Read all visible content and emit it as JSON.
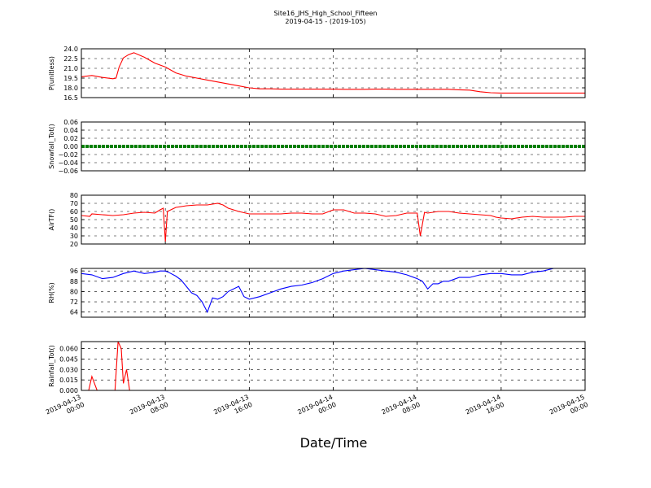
{
  "title": "Site16_JHS_High_School_Fifteen",
  "subtitle": "2019-04-15 - (2019-105)",
  "xlabel": "Date/Time",
  "x_ticks": [
    {
      "line1": "2019-04-13",
      "line2": "00:00"
    },
    {
      "line1": "2019-04-13",
      "line2": "08:00"
    },
    {
      "line1": "2019-04-13",
      "line2": "16:00"
    },
    {
      "line1": "2019-04-14",
      "line2": "00:00"
    },
    {
      "line1": "2019-04-14",
      "line2": "08:00"
    },
    {
      "line1": "2019-04-14",
      "line2": "16:00"
    },
    {
      "line1": "2019-04-15",
      "line2": "00:00"
    }
  ],
  "chart_data": [
    {
      "type": "line",
      "ylabel": "P(unitless)",
      "color": "#ff0000",
      "ylim": [
        16.5,
        24.0
      ],
      "yticks": [
        "24.0",
        "22.5",
        "21.0",
        "19.5",
        "18.0",
        "16.5"
      ],
      "grid": true,
      "x": [
        0,
        1,
        2,
        3,
        3.3,
        3.6,
        4,
        4.5,
        5,
        6,
        7,
        8,
        9,
        10,
        11,
        12,
        13,
        14,
        15,
        16,
        17,
        18,
        19,
        20,
        21,
        22,
        23,
        24,
        25,
        26,
        27,
        28,
        29,
        30,
        31,
        32,
        33,
        34,
        35,
        36,
        37,
        38,
        39,
        40,
        41,
        42,
        43,
        44,
        45,
        46,
        47,
        48
      ],
      "values": [
        19.7,
        19.9,
        19.6,
        19.4,
        19.5,
        21.2,
        22.6,
        23.1,
        23.4,
        22.7,
        21.8,
        21.2,
        20.3,
        19.8,
        19.5,
        19.2,
        18.9,
        18.6,
        18.3,
        18.0,
        17.85,
        17.85,
        17.8,
        17.8,
        17.8,
        17.8,
        17.8,
        17.8,
        17.78,
        17.78,
        17.78,
        17.8,
        17.8,
        17.78,
        17.78,
        17.78,
        17.78,
        17.78,
        17.78,
        17.7,
        17.65,
        17.4,
        17.25,
        17.2,
        17.2,
        17.2,
        17.2,
        17.2,
        17.2,
        17.2,
        17.2,
        17.2
      ]
    },
    {
      "type": "line",
      "ylabel": "Snowfall_Tot()",
      "color": "#008000",
      "ylim": [
        -0.06,
        0.06
      ],
      "yticks": [
        "0.06",
        "0.04",
        "0.02",
        "0.00",
        "−0.02",
        "−0.04",
        "−0.06"
      ],
      "grid": true,
      "x": [
        0,
        48
      ],
      "values": [
        0,
        0
      ]
    },
    {
      "type": "line",
      "ylabel": "AirTF()",
      "color": "#ff0000",
      "ylim": [
        20,
        80
      ],
      "yticks": [
        "80",
        "70",
        "60",
        "50",
        "40",
        "30",
        "20"
      ],
      "grid": true,
      "x": [
        0,
        0.8,
        1,
        2,
        3,
        4,
        5,
        6,
        7,
        7.5,
        7.8,
        8,
        8.2,
        9,
        10,
        11,
        12,
        13,
        13.5,
        14,
        15,
        16,
        17,
        18,
        19,
        20,
        21,
        22,
        23,
        24,
        25,
        26,
        27,
        28,
        29,
        30,
        31,
        32,
        32.3,
        32.7,
        33,
        34,
        35,
        36,
        37,
        38,
        39,
        39.5,
        40,
        41,
        42,
        43,
        44,
        45,
        46,
        47,
        48
      ],
      "values": [
        55,
        54,
        57,
        56,
        55,
        56,
        58,
        59,
        58,
        62,
        64,
        23,
        60,
        65,
        67,
        68,
        68,
        70,
        68,
        64,
        60,
        57,
        57,
        57,
        57,
        58,
        58,
        57,
        57,
        62,
        62,
        58,
        58,
        57,
        54,
        55,
        58,
        58,
        30,
        59,
        58,
        60,
        60,
        58,
        57,
        56,
        55,
        53,
        52,
        51,
        53,
        54,
        53,
        53,
        53,
        54,
        54
      ]
    },
    {
      "type": "line",
      "ylabel": "RH(%)",
      "color": "#0000ff",
      "ylim": [
        60,
        98
      ],
      "yticks": [
        "96",
        "88",
        "80",
        "72",
        "64"
      ],
      "grid": true,
      "x": [
        0,
        1,
        2,
        3,
        4,
        5,
        6,
        7,
        7.5,
        8,
        8.3,
        9,
        9.5,
        10,
        10.5,
        11,
        11.5,
        12,
        12.5,
        13,
        13.5,
        14,
        15,
        15.5,
        16,
        17,
        18,
        19,
        20,
        21,
        22,
        23,
        24,
        25,
        26,
        27,
        28,
        29,
        30,
        31,
        32,
        32.5,
        33,
        33.5,
        34,
        34.5,
        35,
        36,
        37,
        38,
        39,
        40,
        41,
        42,
        43,
        44,
        45,
        46,
        47,
        48
      ],
      "values": [
        94,
        93,
        90,
        91,
        94,
        96,
        94,
        95,
        96,
        96,
        95,
        92,
        89,
        84,
        79,
        77,
        72,
        64,
        75,
        74,
        76,
        80,
        84,
        76,
        74,
        76,
        79,
        82,
        84,
        85,
        87,
        90,
        94,
        96,
        97,
        98,
        97,
        96,
        95,
        93,
        90,
        88,
        82,
        86,
        86,
        88,
        88,
        91,
        91,
        93,
        94,
        94,
        93,
        93,
        95,
        96,
        98,
        98,
        98,
        98
      ]
    },
    {
      "type": "line",
      "ylabel": "Rainfall_Tot()",
      "color": "#ff0000",
      "ylim": [
        0,
        0.07
      ],
      "yticks": [
        "0.060",
        "0.045",
        "0.030",
        "0.015",
        "0.000"
      ],
      "grid": true,
      "x": [
        0,
        0.7,
        1,
        1.5,
        3,
        3.2,
        3.5,
        3.8,
        4,
        4.3,
        4.6,
        5,
        48
      ],
      "values": [
        0,
        0,
        0.02,
        0,
        0,
        0,
        0.07,
        0.06,
        0.01,
        0.03,
        0,
        0,
        0
      ]
    }
  ]
}
